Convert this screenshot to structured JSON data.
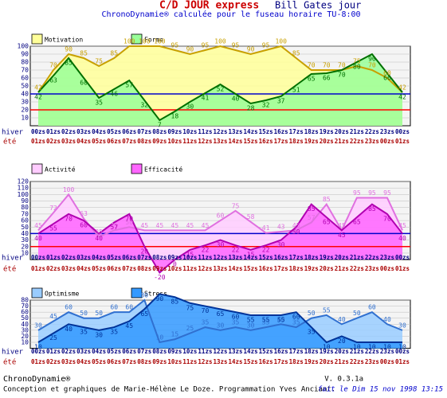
{
  "header": {
    "title": "C/D JOUR express",
    "person": "Bill Gates jour",
    "subtitle": "ChronoDynamie® calculée pour le fuseau horaire TU-8:00"
  },
  "chart_data": [
    {
      "type": "area",
      "category_label": "hiver",
      "category2_label": "été",
      "categories": [
        "00zs",
        "01zs",
        "02zs",
        "03zs",
        "04zs",
        "05zs",
        "06zs",
        "07zs",
        "08zs",
        "09zs",
        "10zs",
        "11zs",
        "12zs",
        "13zs",
        "14zs",
        "15zs",
        "16zs",
        "17zs",
        "18zs",
        "19zs",
        "20zs",
        "21zs",
        "22zs",
        "23zs",
        "00zs"
      ],
      "categories2": [
        "01zs",
        "02zs",
        "03zs",
        "04zs",
        "05zs",
        "06zs",
        "07zs",
        "08zs",
        "09zs",
        "10zs",
        "11zs",
        "12zs",
        "13zs",
        "14zs",
        "15zs",
        "16zs",
        "17zs",
        "18zs",
        "19zs",
        "20zs",
        "21zs",
        "22zs",
        "23zs",
        "00zs",
        "01zs"
      ],
      "ylim": [
        0,
        100
      ],
      "yticks": [
        10,
        20,
        30,
        40,
        50,
        60,
        70,
        80,
        90,
        100
      ],
      "hlines": [
        {
          "value": 40,
          "color": "#0000cc"
        },
        {
          "value": 20,
          "color": "#ff0000"
        }
      ],
      "series": [
        {
          "name": "Motivation",
          "color": "#c8a000",
          "fill": "#ffff99",
          "values": [
            42,
            70,
            90,
            85,
            75,
            85,
            100,
            100,
            100,
            95,
            90,
            95,
            100,
            95,
            90,
            95,
            100,
            85,
            70,
            70,
            70,
            75,
            70,
            60,
            42
          ]
        },
        {
          "name": "Forme",
          "color": "#007000",
          "fill": "#99ff99",
          "values": [
            42,
            63,
            85,
            60,
            35,
            46,
            57,
            32,
            7,
            18,
            30,
            41,
            52,
            40,
            28,
            32,
            37,
            51,
            65,
            66,
            70,
            80,
            90,
            66,
            42
          ]
        }
      ]
    },
    {
      "type": "area",
      "category_label": "hiver",
      "category2_label": "été",
      "categories": [
        "00zs",
        "01zs",
        "02zs",
        "03zs",
        "04zs",
        "05zs",
        "06zs",
        "07zs",
        "08zs",
        "09zs",
        "10zs",
        "11zs",
        "12zs",
        "13zs",
        "14zs",
        "15zs",
        "16zs",
        "17zs",
        "18zs",
        "19zs",
        "20zs",
        "21zs",
        "22zs",
        "23zs",
        "00zs"
      ],
      "categories2": [
        "01zs",
        "02zs",
        "03zs",
        "04zs",
        "05zs",
        "06zs",
        "07zs",
        "08zs",
        "09zs",
        "10zs",
        "11zs",
        "12zs",
        "13zs",
        "14zs",
        "15zs",
        "16zs",
        "17zs",
        "18zs",
        "19zs",
        "20zs",
        "21zs",
        "22zs",
        "23zs",
        "00zs",
        "01zs"
      ],
      "ylim": [
        -20,
        120
      ],
      "yticks": [
        10,
        20,
        30,
        40,
        50,
        60,
        70,
        80,
        90,
        100,
        110,
        120
      ],
      "hlines": [
        {
          "value": 40,
          "color": "#0000cc"
        },
        {
          "value": 20,
          "color": "#ff0000"
        }
      ],
      "series": [
        {
          "name": "Activité",
          "color": "#e070e0",
          "fill": "#ffccff",
          "values": [
            45,
            72,
            100,
            63,
            35,
            45,
            50,
            45,
            45,
            45,
            45,
            45,
            60,
            75,
            58,
            41,
            43,
            45,
            57,
            85,
            45,
            95,
            95,
            95,
            45
          ]
        },
        {
          "name": "Efficacité",
          "color": "#b000b0",
          "fill": "#ff66ff",
          "values": [
            40,
            55,
            70,
            60,
            40,
            57,
            70,
            20,
            -20,
            0,
            15,
            22,
            30,
            22,
            15,
            22,
            30,
            50,
            85,
            65,
            45,
            65,
            85,
            70,
            40
          ]
        }
      ]
    },
    {
      "type": "area",
      "category_label": "hiver",
      "category2_label": "été",
      "categories": [
        "00zs",
        "01zs",
        "02zs",
        "03zs",
        "04zs",
        "05zs",
        "06zs",
        "07zs",
        "08zs",
        "09zs",
        "10zs",
        "11zs",
        "12zs",
        "13zs",
        "14zs",
        "15zs",
        "16zs",
        "17zs",
        "18zs",
        "19zs",
        "20zs",
        "21zs",
        "22zs",
        "23zs",
        "00zs"
      ],
      "categories2": [
        "01zs",
        "02zs",
        "03zs",
        "04zs",
        "05zs",
        "06zs",
        "07zs",
        "08zs",
        "09zs",
        "10zs",
        "11zs",
        "12zs",
        "13zs",
        "14zs",
        "15zs",
        "16zs",
        "17zs",
        "18zs",
        "19zs",
        "20zs",
        "21zs",
        "22zs",
        "23zs",
        "00zs",
        "01zs"
      ],
      "ylim": [
        0,
        80
      ],
      "yticks": [
        10,
        20,
        30,
        40,
        50,
        60,
        70,
        80
      ],
      "hlines": [],
      "series": [
        {
          "name": "Optimisme",
          "color": "#3070d0",
          "fill": "#99ccff",
          "values": [
            30,
            45,
            60,
            50,
            50,
            60,
            60,
            80,
            10,
            15,
            25,
            35,
            30,
            35,
            30,
            35,
            40,
            35,
            50,
            55,
            40,
            50,
            60,
            40,
            30
          ]
        },
        {
          "name": "Stress",
          "color": "#003399",
          "fill": "#3399ff",
          "values": [
            10,
            25,
            40,
            35,
            30,
            35,
            45,
            65,
            90,
            85,
            75,
            70,
            65,
            60,
            55,
            55,
            55,
            60,
            35,
            10,
            20,
            10,
            10,
            10,
            10
          ]
        }
      ]
    }
  ],
  "footer": {
    "brand": "ChronoDynamie®",
    "credits": "Conception et graphiques de Marie-Hélène Le Doze. Programmation Yves Anciant.",
    "version": "V. 0.3.1a",
    "date": "fait le Dim 15 nov 1998 13:15"
  }
}
